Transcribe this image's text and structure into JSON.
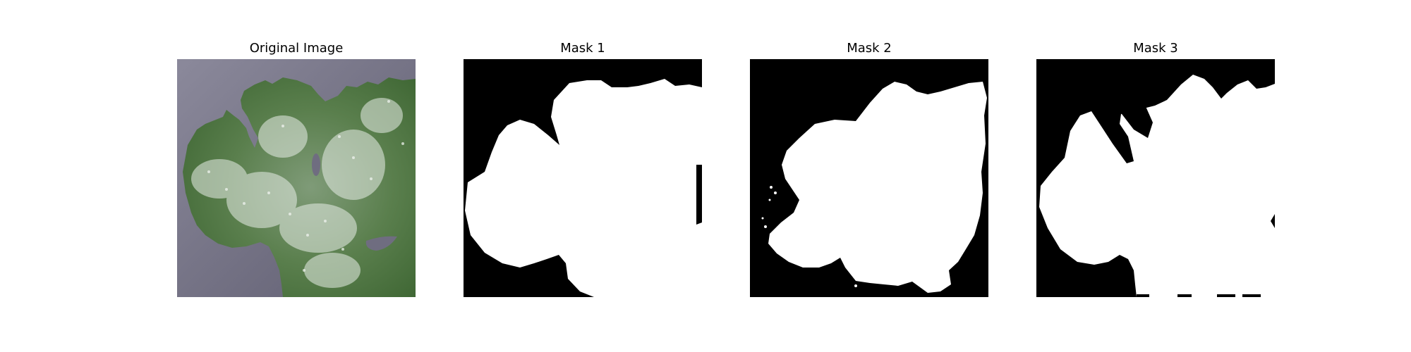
{
  "figure": {
    "panels": [
      {
        "title": "Original Image",
        "kind": "photo"
      },
      {
        "title": "Mask 1",
        "kind": "mask"
      },
      {
        "title": "Mask 2",
        "kind": "mask"
      },
      {
        "title": "Mask 3",
        "kind": "mask"
      }
    ]
  },
  "colors": {
    "background": "#7f7d8e",
    "leaf_dark": "#3f6a34",
    "leaf_light": "#8aa68a",
    "mildew": "#e6ece6",
    "mask_fg": "#ffffff",
    "mask_bg": "#000000"
  }
}
